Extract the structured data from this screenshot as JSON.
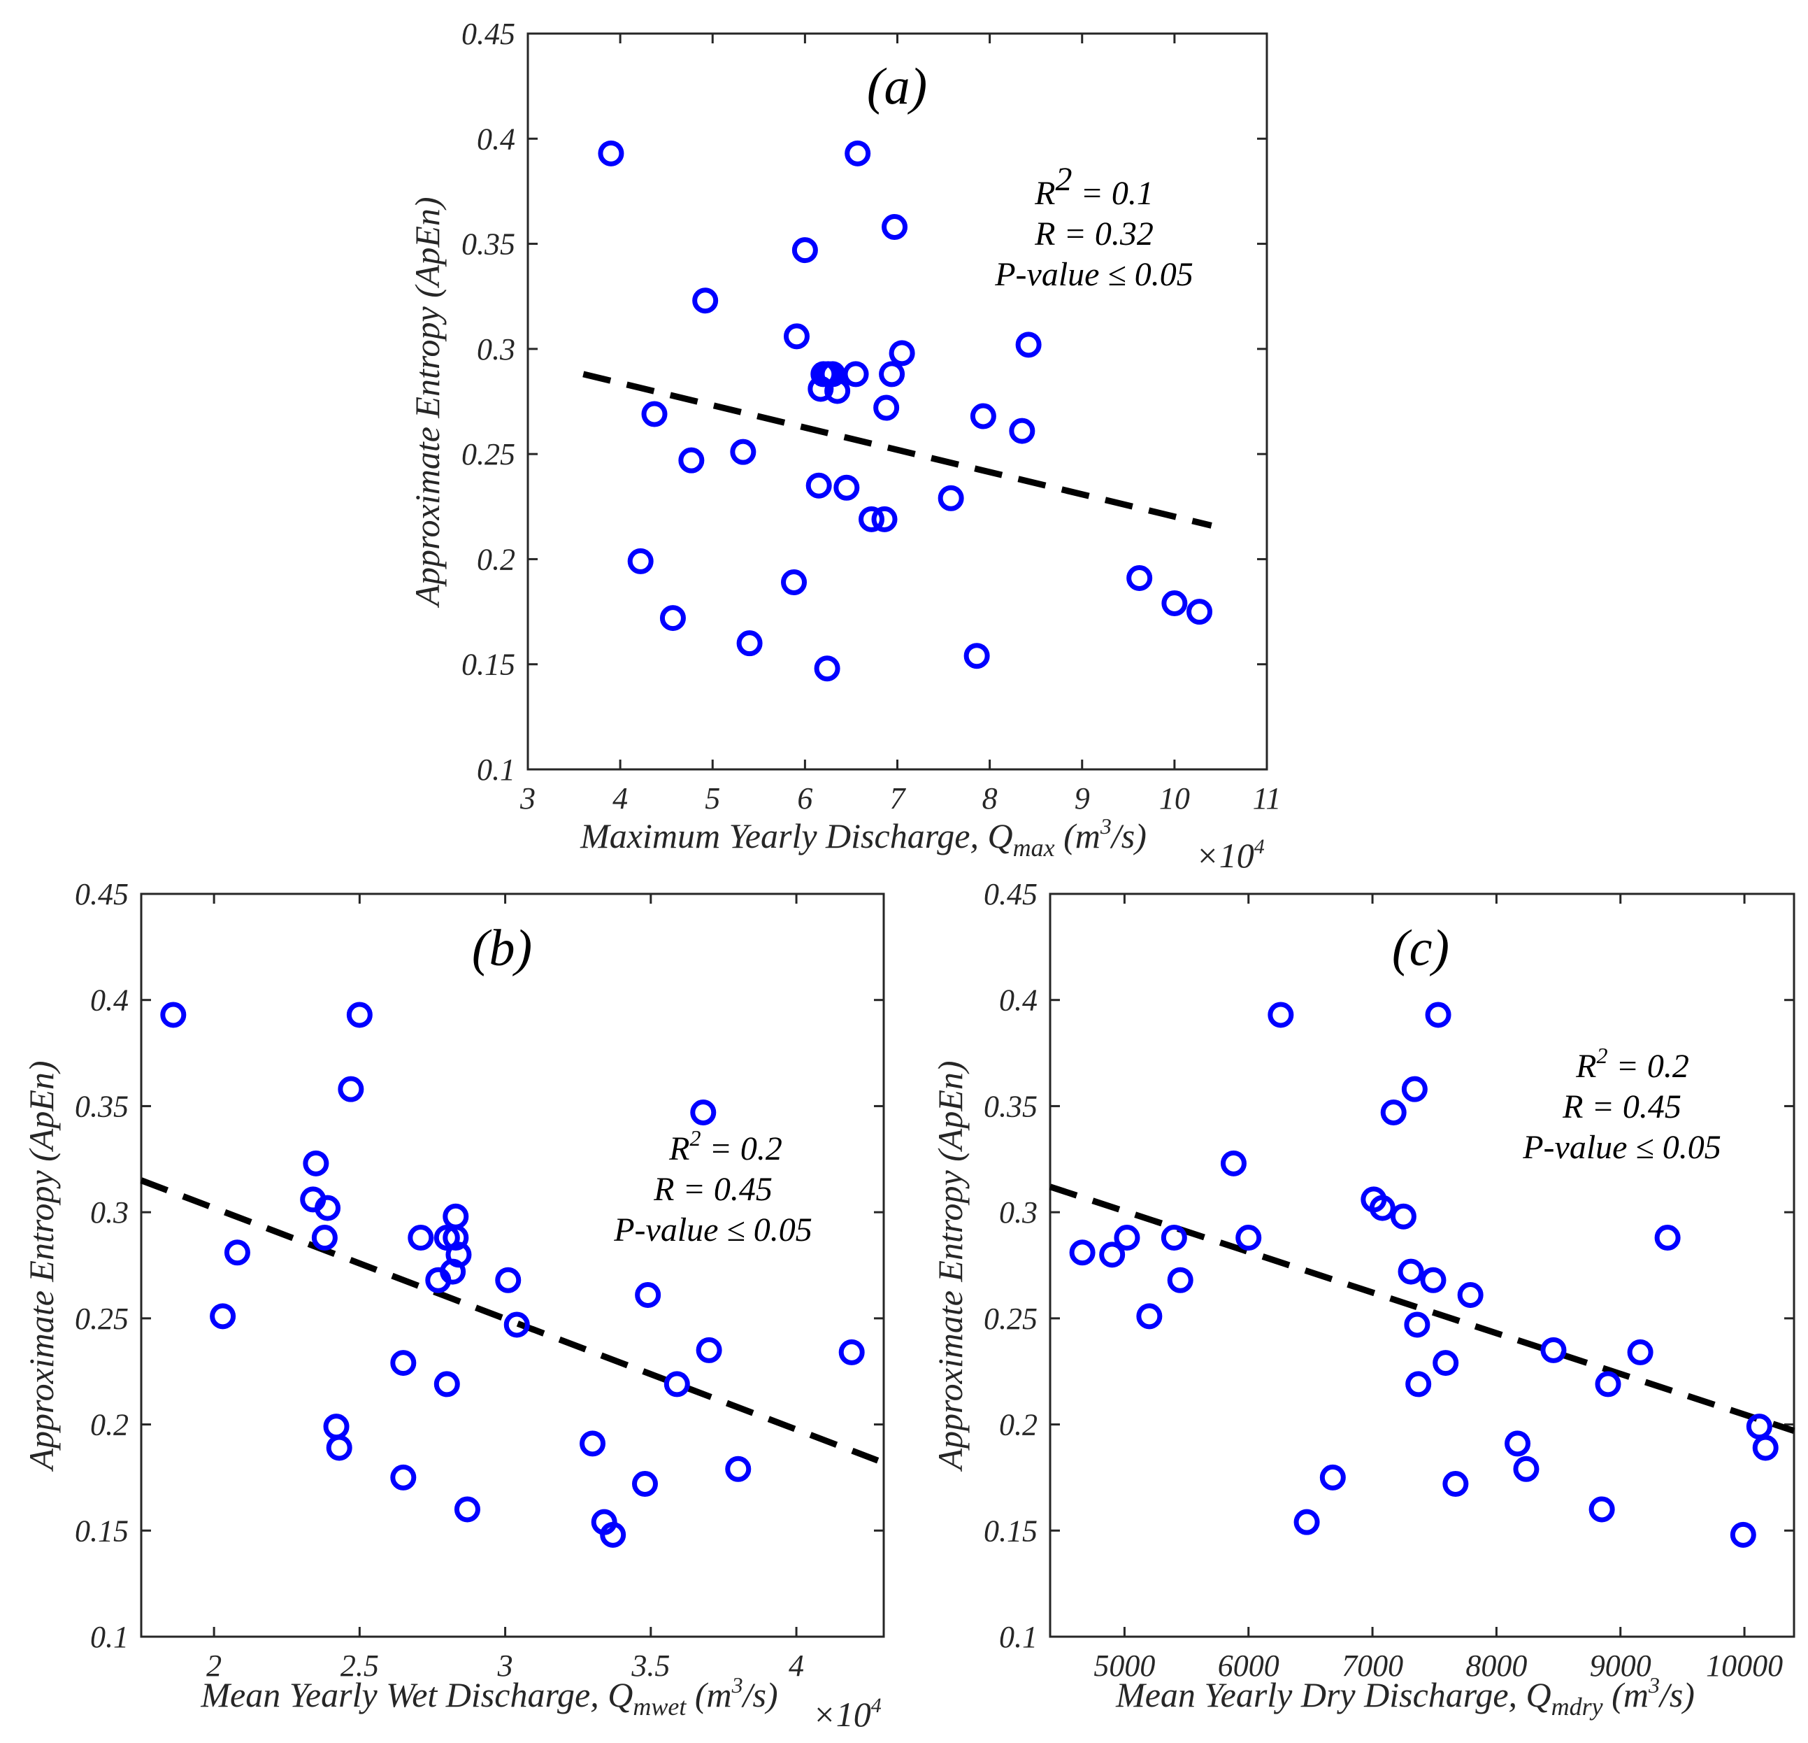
{
  "colors": {
    "points": "#0000ff",
    "fit_line": "#000000",
    "axes": "#262626"
  },
  "chart_data": [
    {
      "id": "a",
      "type": "scatter",
      "panel_label": "(a)",
      "xlabel": "Maximum Yearly Discharge, Q",
      "xlabel_sub": "max",
      "xlabel_units_pre": " (m",
      "xlabel_units_sup": "3",
      "xlabel_units_post": "/s)",
      "x_multiplier_base": "×10",
      "x_multiplier_exp": "4",
      "ylabel": "Approximate Entropy (ApEn)",
      "xlim": [
        3,
        11
      ],
      "ylim": [
        0.1,
        0.45
      ],
      "xticks": [
        3,
        4,
        5,
        6,
        7,
        8,
        9,
        10,
        11
      ],
      "xtick_labels": [
        "3",
        "4",
        "5",
        "6",
        "7",
        "8",
        "9",
        "10",
        "11"
      ],
      "yticks": [
        0.1,
        0.15,
        0.2,
        0.25,
        0.3,
        0.35,
        0.4,
        0.45
      ],
      "ytick_labels": [
        "0.1",
        "0.15",
        "0.2",
        "0.25",
        "0.3",
        "0.35",
        "0.4",
        "0.45"
      ],
      "stats": {
        "r2_pre": "R",
        "r2_sup": "2",
        "r2_post": " = 0.1",
        "r": "R = 0.32",
        "p": "P-value ≤ 0.05"
      },
      "fit": {
        "x": [
          3.6,
          10.4
        ],
        "y": [
          0.288,
          0.216
        ]
      },
      "points": [
        {
          "x": 3.9,
          "y": 0.393
        },
        {
          "x": 6.57,
          "y": 0.393
        },
        {
          "x": 6.97,
          "y": 0.358
        },
        {
          "x": 6.0,
          "y": 0.347
        },
        {
          "x": 4.92,
          "y": 0.323
        },
        {
          "x": 5.91,
          "y": 0.306
        },
        {
          "x": 7.05,
          "y": 0.298
        },
        {
          "x": 8.42,
          "y": 0.302
        },
        {
          "x": 6.2,
          "y": 0.288
        },
        {
          "x": 6.25,
          "y": 0.288
        },
        {
          "x": 6.3,
          "y": 0.288
        },
        {
          "x": 6.55,
          "y": 0.288
        },
        {
          "x": 6.94,
          "y": 0.288
        },
        {
          "x": 6.17,
          "y": 0.281
        },
        {
          "x": 6.35,
          "y": 0.28
        },
        {
          "x": 6.88,
          "y": 0.272
        },
        {
          "x": 4.37,
          "y": 0.269
        },
        {
          "x": 7.93,
          "y": 0.268
        },
        {
          "x": 8.35,
          "y": 0.261
        },
        {
          "x": 5.33,
          "y": 0.251
        },
        {
          "x": 4.77,
          "y": 0.247
        },
        {
          "x": 6.15,
          "y": 0.235
        },
        {
          "x": 6.45,
          "y": 0.234
        },
        {
          "x": 7.58,
          "y": 0.229
        },
        {
          "x": 6.72,
          "y": 0.219
        },
        {
          "x": 6.86,
          "y": 0.219
        },
        {
          "x": 4.22,
          "y": 0.199
        },
        {
          "x": 9.62,
          "y": 0.191
        },
        {
          "x": 5.88,
          "y": 0.189
        },
        {
          "x": 10.0,
          "y": 0.179
        },
        {
          "x": 10.27,
          "y": 0.175
        },
        {
          "x": 4.57,
          "y": 0.172
        },
        {
          "x": 5.4,
          "y": 0.16
        },
        {
          "x": 7.86,
          "y": 0.154
        },
        {
          "x": 6.24,
          "y": 0.148
        }
      ]
    },
    {
      "id": "b",
      "type": "scatter",
      "panel_label": "(b)",
      "xlabel": "Mean Yearly Wet Discharge, Q",
      "xlabel_sub": "mwet",
      "xlabel_units_pre": " (m",
      "xlabel_units_sup": "3",
      "xlabel_units_post": "/s)",
      "x_multiplier_base": "×10",
      "x_multiplier_exp": "4",
      "ylabel": "Approximate Entropy (ApEn)",
      "xlim": [
        1.75,
        4.3
      ],
      "ylim": [
        0.1,
        0.45
      ],
      "xticks": [
        2,
        2.5,
        3,
        3.5,
        4
      ],
      "xtick_labels": [
        "2",
        "2.5",
        "3",
        "3.5",
        "4"
      ],
      "yticks": [
        0.1,
        0.15,
        0.2,
        0.25,
        0.3,
        0.35,
        0.4,
        0.45
      ],
      "ytick_labels": [
        "0.1",
        "0.15",
        "0.2",
        "0.25",
        "0.3",
        "0.35",
        "0.4",
        "0.45"
      ],
      "stats": {
        "r2_pre": "R",
        "r2_sup": "2",
        "r2_post": " = 0.2",
        "r": "R = 0.45",
        "p": "P-value ≤ 0.05"
      },
      "fit": {
        "x": [
          1.75,
          4.28
        ],
        "y": [
          0.315,
          0.183
        ]
      },
      "points": [
        {
          "x": 1.86,
          "y": 0.393
        },
        {
          "x": 2.5,
          "y": 0.393
        },
        {
          "x": 2.47,
          "y": 0.358
        },
        {
          "x": 3.68,
          "y": 0.347
        },
        {
          "x": 2.35,
          "y": 0.323
        },
        {
          "x": 2.34,
          "y": 0.306
        },
        {
          "x": 2.39,
          "y": 0.302
        },
        {
          "x": 2.83,
          "y": 0.298
        },
        {
          "x": 2.38,
          "y": 0.288
        },
        {
          "x": 2.71,
          "y": 0.288
        },
        {
          "x": 2.8,
          "y": 0.288
        },
        {
          "x": 2.83,
          "y": 0.288
        },
        {
          "x": 2.08,
          "y": 0.281
        },
        {
          "x": 2.84,
          "y": 0.28
        },
        {
          "x": 2.82,
          "y": 0.272
        },
        {
          "x": 2.77,
          "y": 0.268
        },
        {
          "x": 3.01,
          "y": 0.268
        },
        {
          "x": 3.49,
          "y": 0.261
        },
        {
          "x": 2.03,
          "y": 0.251
        },
        {
          "x": 3.04,
          "y": 0.247
        },
        {
          "x": 3.7,
          "y": 0.235
        },
        {
          "x": 4.19,
          "y": 0.234
        },
        {
          "x": 2.65,
          "y": 0.229
        },
        {
          "x": 2.8,
          "y": 0.219
        },
        {
          "x": 3.59,
          "y": 0.219
        },
        {
          "x": 2.42,
          "y": 0.199
        },
        {
          "x": 3.3,
          "y": 0.191
        },
        {
          "x": 2.43,
          "y": 0.189
        },
        {
          "x": 3.8,
          "y": 0.179
        },
        {
          "x": 2.65,
          "y": 0.175
        },
        {
          "x": 3.48,
          "y": 0.172
        },
        {
          "x": 2.87,
          "y": 0.16
        },
        {
          "x": 3.34,
          "y": 0.154
        },
        {
          "x": 3.37,
          "y": 0.148
        }
      ]
    },
    {
      "id": "c",
      "type": "scatter",
      "panel_label": "(c)",
      "xlabel": "Mean Yearly Dry Discharge, Q",
      "xlabel_sub": "mdry",
      "xlabel_units_pre": " (m",
      "xlabel_units_sup": "3",
      "xlabel_units_post": "/s)",
      "x_multiplier_base": "",
      "x_multiplier_exp": "",
      "ylabel": "Approximate Entropy (ApEn)",
      "xlim": [
        4400,
        10400
      ],
      "ylim": [
        0.1,
        0.45
      ],
      "xticks": [
        5000,
        6000,
        7000,
        8000,
        9000,
        10000
      ],
      "xtick_labels": [
        "5000",
        "6000",
        "7000",
        "8000",
        "9000",
        "10000"
      ],
      "yticks": [
        0.1,
        0.15,
        0.2,
        0.25,
        0.3,
        0.35,
        0.4,
        0.45
      ],
      "ytick_labels": [
        "0.1",
        "0.15",
        "0.2",
        "0.25",
        "0.3",
        "0.35",
        "0.4",
        "0.45"
      ],
      "stats": {
        "r2_pre": "R",
        "r2_sup": "2",
        "r2_post": " = 0.2",
        "r": "R = 0.45",
        "p": "P-value ≤ 0.05"
      },
      "fit": {
        "x": [
          4400,
          10400
        ],
        "y": [
          0.312,
          0.197
        ]
      },
      "points": [
        {
          "x": 6260,
          "y": 0.393
        },
        {
          "x": 7530,
          "y": 0.393
        },
        {
          "x": 7340,
          "y": 0.358
        },
        {
          "x": 7170,
          "y": 0.347
        },
        {
          "x": 5880,
          "y": 0.323
        },
        {
          "x": 7010,
          "y": 0.306
        },
        {
          "x": 7080,
          "y": 0.302
        },
        {
          "x": 7250,
          "y": 0.298
        },
        {
          "x": 5020,
          "y": 0.288
        },
        {
          "x": 5400,
          "y": 0.288
        },
        {
          "x": 6000,
          "y": 0.288
        },
        {
          "x": 9380,
          "y": 0.288
        },
        {
          "x": 4660,
          "y": 0.281
        },
        {
          "x": 4900,
          "y": 0.28
        },
        {
          "x": 7310,
          "y": 0.272
        },
        {
          "x": 5450,
          "y": 0.268
        },
        {
          "x": 7490,
          "y": 0.268
        },
        {
          "x": 7790,
          "y": 0.261
        },
        {
          "x": 5200,
          "y": 0.251
        },
        {
          "x": 7360,
          "y": 0.247
        },
        {
          "x": 8460,
          "y": 0.235
        },
        {
          "x": 9160,
          "y": 0.234
        },
        {
          "x": 7590,
          "y": 0.229
        },
        {
          "x": 7370,
          "y": 0.219
        },
        {
          "x": 8900,
          "y": 0.219
        },
        {
          "x": 10120,
          "y": 0.199
        },
        {
          "x": 8170,
          "y": 0.191
        },
        {
          "x": 10170,
          "y": 0.189
        },
        {
          "x": 8240,
          "y": 0.179
        },
        {
          "x": 6680,
          "y": 0.175
        },
        {
          "x": 7670,
          "y": 0.172
        },
        {
          "x": 8850,
          "y": 0.16
        },
        {
          "x": 6470,
          "y": 0.154
        },
        {
          "x": 9990,
          "y": 0.148
        }
      ]
    }
  ]
}
